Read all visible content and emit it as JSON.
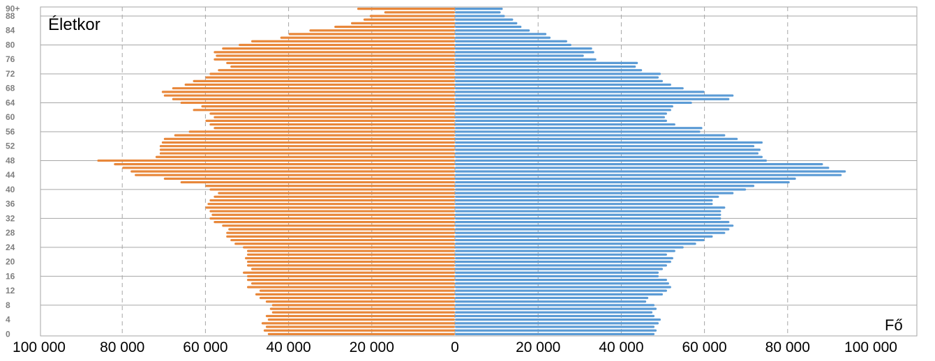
{
  "chart_data": {
    "type": "bar",
    "orientation": "horizontal-population-pyramid",
    "title": "",
    "ylabel": "Életkor",
    "xlabel": "Fő",
    "xlim": [
      -100000,
      100000
    ],
    "x_ticks": [
      -100000,
      -80000,
      -60000,
      -40000,
      -20000,
      0,
      20000,
      40000,
      60000,
      80000,
      100000
    ],
    "x_tick_labels": [
      "100 000",
      "80 000",
      "60 000",
      "40 000",
      "20 000",
      "0",
      "20 000",
      "40 000",
      "60 000",
      "80 000",
      "100 000"
    ],
    "y_tick_labels": [
      "0",
      "4",
      "8",
      "12",
      "16",
      "20",
      "24",
      "28",
      "32",
      "36",
      "40",
      "44",
      "48",
      "52",
      "56",
      "60",
      "64",
      "68",
      "72",
      "76",
      "80",
      "84",
      "88",
      "90+"
    ],
    "categories": [
      "0",
      "1",
      "2",
      "3",
      "4",
      "5",
      "6",
      "7",
      "8",
      "9",
      "10",
      "11",
      "12",
      "13",
      "14",
      "15",
      "16",
      "17",
      "18",
      "19",
      "20",
      "21",
      "22",
      "23",
      "24",
      "25",
      "26",
      "27",
      "28",
      "29",
      "30",
      "31",
      "32",
      "33",
      "34",
      "35",
      "36",
      "37",
      "38",
      "39",
      "40",
      "41",
      "42",
      "43",
      "44",
      "45",
      "46",
      "47",
      "48",
      "49",
      "50",
      "51",
      "52",
      "53",
      "54",
      "55",
      "56",
      "57",
      "58",
      "59",
      "60",
      "61",
      "62",
      "63",
      "64",
      "65",
      "66",
      "67",
      "68",
      "69",
      "70",
      "71",
      "72",
      "73",
      "74",
      "75",
      "76",
      "77",
      "78",
      "79",
      "80",
      "81",
      "82",
      "83",
      "84",
      "85",
      "86",
      "87",
      "88",
      "89",
      "90+"
    ],
    "grid": true,
    "legend": "none",
    "series": [
      {
        "side": "left",
        "color": "#E8873A",
        "values": [
          45000,
          46000,
          45500,
          46500,
          45000,
          45500,
          44000,
          44500,
          44000,
          45500,
          47000,
          48000,
          47000,
          50000,
          49000,
          50000,
          50000,
          51000,
          49000,
          50000,
          50000,
          50500,
          50000,
          50000,
          51000,
          53000,
          54000,
          55000,
          55000,
          54500,
          56000,
          58000,
          59000,
          58500,
          59000,
          60000,
          59500,
          59000,
          58000,
          57000,
          59000,
          60000,
          66000,
          70000,
          77000,
          78000,
          80000,
          82000,
          86000,
          72000,
          71000,
          71000,
          71000,
          70500,
          70000,
          67500,
          64000,
          58000,
          59000,
          60000,
          58000,
          59000,
          63000,
          61000,
          66000,
          68000,
          70000,
          70500,
          68000,
          65000,
          63000,
          60000,
          59000,
          57000,
          54000,
          55000,
          58000,
          57500,
          58000,
          56000,
          52000,
          49000,
          42000,
          40000,
          35000,
          29000,
          25000,
          22000,
          20500,
          17000,
          23500
        ]
      },
      {
        "side": "right",
        "color": "#5B9BD5",
        "values": [
          48000,
          48500,
          48000,
          49000,
          49500,
          48000,
          47500,
          48500,
          48000,
          46000,
          46500,
          50000,
          51000,
          52000,
          51500,
          51000,
          49000,
          49000,
          50000,
          51000,
          52000,
          52500,
          51000,
          53000,
          55000,
          58000,
          60000,
          62000,
          65000,
          66000,
          67000,
          66000,
          64000,
          64000,
          64000,
          65000,
          62000,
          62000,
          63500,
          67000,
          70000,
          72000,
          80500,
          82000,
          93000,
          94000,
          90000,
          88500,
          75000,
          74000,
          73000,
          73500,
          72000,
          74000,
          68000,
          65000,
          59000,
          59500,
          53000,
          51000,
          50500,
          51000,
          52000,
          52500,
          57000,
          66000,
          67000,
          60000,
          55000,
          52000,
          50000,
          49000,
          49500,
          45000,
          43500,
          44000,
          34000,
          31000,
          33500,
          33000,
          28000,
          27000,
          23000,
          22000,
          18000,
          16000,
          15000,
          14000,
          12000,
          11000,
          11500
        ]
      }
    ]
  }
}
